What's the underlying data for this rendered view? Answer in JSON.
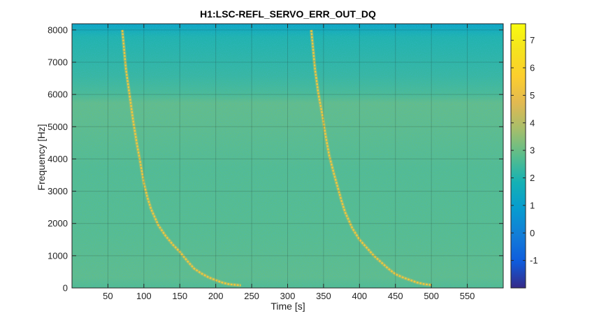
{
  "chart_data": {
    "type": "heatmap",
    "title": "H1:LSC-REFL_SERVO_ERR_OUT_DQ",
    "xlabel": "Time [s]",
    "ylabel": "Frequency [Hz]",
    "xlim": [
      0,
      600
    ],
    "ylim": [
      0,
      8192
    ],
    "x_ticks": [
      50,
      100,
      150,
      200,
      250,
      300,
      350,
      400,
      450,
      500,
      550
    ],
    "y_ticks": [
      0,
      1000,
      2000,
      3000,
      4000,
      5000,
      6000,
      7000,
      8000
    ],
    "colorbar": {
      "range": [
        -2,
        7.6
      ],
      "ticks": [
        -1,
        0,
        1,
        2,
        3,
        4,
        5,
        6,
        7
      ],
      "colormap": "parula"
    },
    "background_level": 2.8,
    "grid": true,
    "series": [
      {
        "x": [
          70,
          75,
          80,
          85,
          90,
          95,
          100,
          105,
          110,
          120,
          130,
          140,
          150,
          160,
          170,
          180,
          190,
          200,
          210,
          220,
          235
        ],
        "y": [
          8000,
          6800,
          6000,
          5200,
          4500,
          3900,
          3250,
          2800,
          2450,
          1950,
          1620,
          1350,
          1120,
          850,
          600,
          450,
          330,
          240,
          160,
          110,
          80
        ],
        "value": 5.3
      },
      {
        "x": [
          333,
          338,
          343,
          348,
          353,
          358,
          365,
          370,
          375,
          380,
          390,
          400,
          410,
          420,
          430,
          440,
          450,
          460,
          470,
          480,
          490,
          500
        ],
        "y": [
          8000,
          6800,
          6000,
          5400,
          4700,
          4100,
          3500,
          3100,
          2700,
          2350,
          1850,
          1500,
          1250,
          1000,
          800,
          600,
          430,
          330,
          250,
          170,
          120,
          90
        ],
        "value": 5.3
      }
    ]
  }
}
